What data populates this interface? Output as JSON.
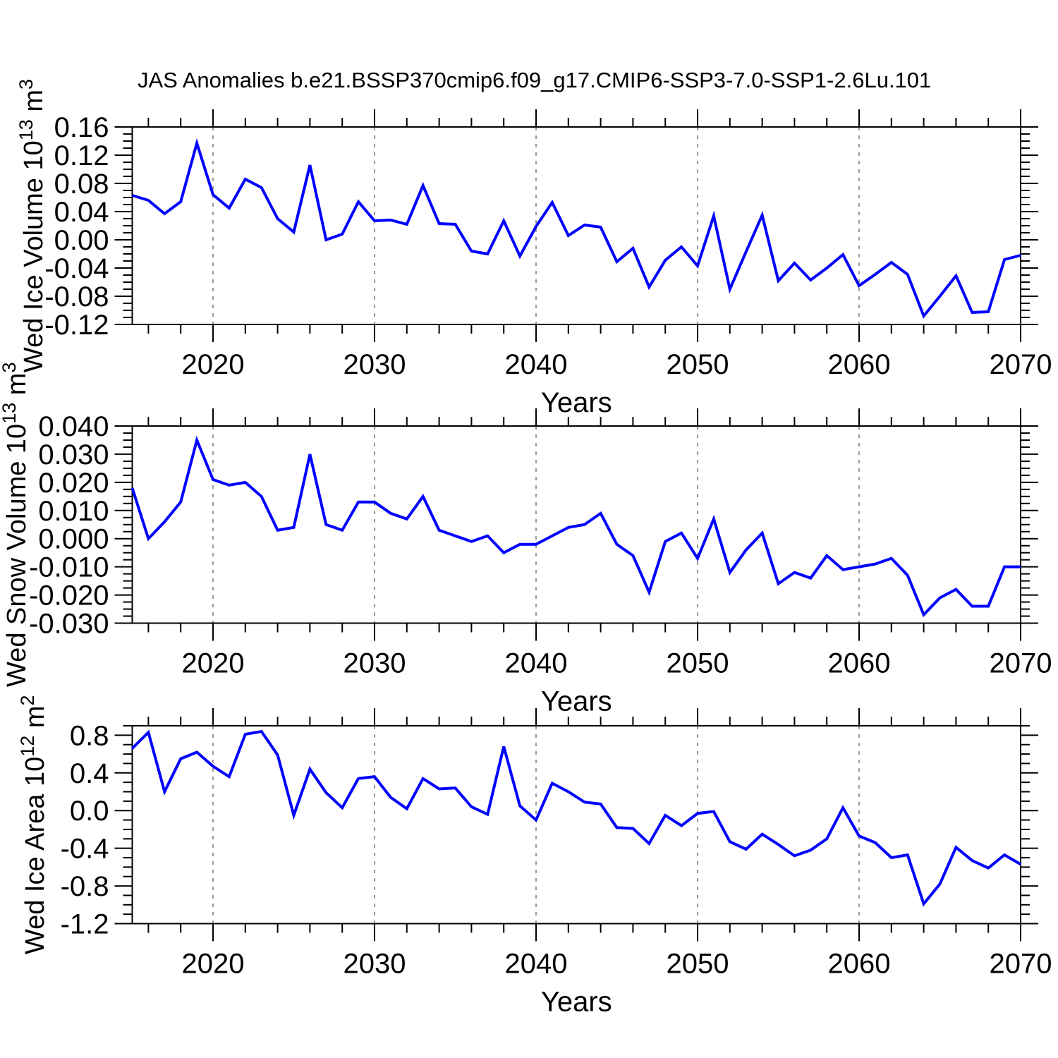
{
  "title": "JAS Anomalies b.e21.BSSP370cmip6.f09_g17.CMIP6-SSP3-7.0-SSP1-2.6Lu.101",
  "colors": {
    "line": "#0000ff",
    "grid": "#999999",
    "frame": "#000000"
  },
  "chart_data": [
    {
      "type": "line",
      "title": "",
      "ylabel": "Wed Ice Volume 10^13 m^3",
      "ylabel_parts": [
        {
          "text": "Wed Ice Volume 10"
        },
        {
          "text": "13",
          "sup": true
        },
        {
          "text": " m"
        },
        {
          "text": "3",
          "sup": true
        }
      ],
      "xlabel": "Years",
      "x_range": [
        2015,
        2070
      ],
      "x_step": 1,
      "values": [
        0.063,
        0.056,
        0.037,
        0.054,
        0.137,
        0.064,
        0.045,
        0.086,
        0.074,
        0.03,
        0.011,
        0.106,
        0.0,
        0.008,
        0.054,
        0.027,
        0.028,
        0.022,
        0.077,
        0.023,
        0.022,
        -0.016,
        -0.02,
        0.027,
        -0.023,
        0.019,
        0.053,
        0.006,
        0.021,
        0.018,
        -0.031,
        -0.012,
        -0.067,
        -0.029,
        -0.01,
        -0.037,
        0.034,
        -0.07,
        -0.017,
        0.035,
        -0.058,
        -0.033,
        -0.057,
        -0.04,
        -0.021,
        -0.065,
        -0.049,
        -0.032,
        -0.049,
        -0.108,
        -0.08,
        -0.051,
        -0.103,
        -0.102,
        -0.028,
        -0.022
      ],
      "ylim": [
        -0.12,
        0.16
      ],
      "ytick_major_step": 0.04,
      "ytick_minor_step": 0.01,
      "ytick_decimals": 2,
      "xtick_labels": [
        2020,
        2030,
        2040,
        2050,
        2060,
        2070
      ],
      "xtick_minor_step": 2,
      "grid_x": [
        2020,
        2030,
        2040,
        2050,
        2060
      ],
      "grid": true,
      "legend": "none"
    },
    {
      "type": "line",
      "title": "",
      "ylabel": "Wed Snow Volume 10^13 m^3",
      "ylabel_parts": [
        {
          "text": "Wed Snow Volume 10"
        },
        {
          "text": "13",
          "sup": true
        },
        {
          "text": " m"
        },
        {
          "text": "3",
          "sup": true
        }
      ],
      "xlabel": "Years",
      "x_range": [
        2015,
        2070
      ],
      "x_step": 1,
      "values": [
        0.018,
        0.0,
        0.006,
        0.013,
        0.035,
        0.021,
        0.019,
        0.02,
        0.015,
        0.003,
        0.004,
        0.03,
        0.005,
        0.003,
        0.013,
        0.013,
        0.009,
        0.007,
        0.015,
        0.003,
        0.001,
        -0.001,
        0.001,
        -0.005,
        -0.002,
        -0.002,
        0.001,
        0.004,
        0.005,
        0.009,
        -0.002,
        -0.006,
        -0.019,
        -0.001,
        0.002,
        -0.007,
        0.007,
        -0.012,
        -0.004,
        0.002,
        -0.016,
        -0.012,
        -0.014,
        -0.006,
        -0.011,
        -0.01,
        -0.009,
        -0.007,
        -0.013,
        -0.027,
        -0.021,
        -0.018,
        -0.024,
        -0.024,
        -0.01,
        -0.01
      ],
      "ylim": [
        -0.03,
        0.04
      ],
      "ytick_major_step": 0.01,
      "ytick_minor_step": 0.0025,
      "ytick_decimals": 3,
      "xtick_labels": [
        2020,
        2030,
        2040,
        2050,
        2060,
        2070
      ],
      "xtick_minor_step": 2,
      "grid_x": [
        2020,
        2030,
        2040,
        2050,
        2060
      ],
      "grid": true,
      "legend": "none"
    },
    {
      "type": "line",
      "title": "",
      "ylabel": "Wed Ice Area 10^12 m^2",
      "ylabel_parts": [
        {
          "text": "Wed Ice Area 10"
        },
        {
          "text": "12",
          "sup": true
        },
        {
          "text": " m"
        },
        {
          "text": "2",
          "sup": true
        }
      ],
      "xlabel": "Years",
      "x_range": [
        2015,
        2070
      ],
      "x_step": 1,
      "values": [
        0.66,
        0.83,
        0.2,
        0.55,
        0.62,
        0.47,
        0.36,
        0.81,
        0.84,
        0.59,
        -0.05,
        0.44,
        0.19,
        0.03,
        0.34,
        0.36,
        0.14,
        0.02,
        0.34,
        0.23,
        0.24,
        0.04,
        -0.04,
        0.68,
        0.05,
        -0.1,
        0.29,
        0.2,
        0.09,
        0.07,
        -0.18,
        -0.19,
        -0.35,
        -0.05,
        -0.16,
        -0.03,
        -0.01,
        -0.33,
        -0.41,
        -0.25,
        -0.36,
        -0.48,
        -0.42,
        -0.3,
        0.03,
        -0.27,
        -0.34,
        -0.5,
        -0.47,
        -0.99,
        -0.78,
        -0.39,
        -0.53,
        -0.61,
        -0.47,
        -0.57
      ],
      "ylim": [
        -1.2,
        0.9
      ],
      "ytick_major_step": 0.4,
      "ytick_minor_step": 0.1,
      "ytick_decimals": 1,
      "xtick_labels": [
        2020,
        2030,
        2040,
        2050,
        2060,
        2070
      ],
      "xtick_minor_step": 2,
      "grid_x": [
        2020,
        2030,
        2040,
        2050,
        2060
      ],
      "grid": true,
      "legend": "none"
    }
  ]
}
